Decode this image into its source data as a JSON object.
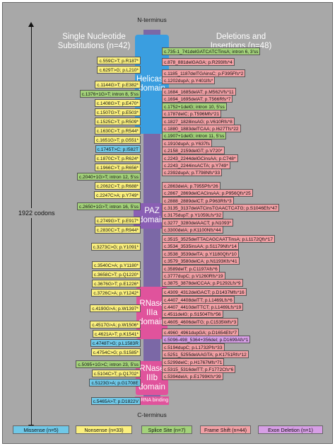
{
  "header": {
    "left_title": [
      "Single Nucleotide",
      "Substitutions (n=42)"
    ],
    "right_title": [
      "Deletions and",
      "Insertions (n=48)"
    ],
    "n_terminus": "N-terminus",
    "c_terminus": "C-terminus",
    "codons": "1922 codons"
  },
  "domains": {
    "helicase": [
      "Helicase",
      "domain"
    ],
    "paz": "PAZ domain",
    "rnase3a": [
      "RNase IIIa",
      "domain"
    ],
    "rnase3b": [
      "RNase IIIb",
      "domain"
    ],
    "dsrna": "dsRNA binding"
  },
  "colors": {
    "Missense": "#6fc8e8",
    "Nonsense": "#fbf07e",
    "Splice": "#a3d27a",
    "Frame": "#f2a0a5",
    "Exon": "#d79ee6",
    "helicase": "#3a9ee0",
    "paz": "#8a5fb4",
    "rnase": "#e0539c",
    "backbone": "#7b68a6"
  },
  "substitutions": [
    {
      "text": "c.559C>T; p.R187*",
      "type": "Nonsense"
    },
    {
      "text": "c.629T>G; p.L210*",
      "type": "Nonsense"
    },
    {
      "text": "c.1144G>T; p.E382*",
      "type": "Nonsense"
    },
    {
      "text": "c.1376+1G>T; intron 8, 5'ss",
      "type": "Splice"
    },
    {
      "text": "c.1408G>T; p.E470*",
      "type": "Nonsense"
    },
    {
      "text": "c.1507G>T; p.E503*",
      "type": "Nonsense"
    },
    {
      "text": "c.1525C>T; p.R509*",
      "type": "Nonsense"
    },
    {
      "text": "c.1630C>T; p.R544*",
      "type": "Nonsense"
    },
    {
      "text": "c.1651G>T; p.G551*",
      "type": "Nonsense"
    },
    {
      "text": "c.1745T>C; p.I582T",
      "type": "Missense"
    },
    {
      "text": "c.1870C>T; p.R624*",
      "type": "Nonsense"
    },
    {
      "text": "c.1966C>T; p.R656*",
      "type": "Nonsense"
    },
    {
      "text": "c.2040+1G>T; intron 12, 5'ss",
      "type": "Splice"
    },
    {
      "text": "c.2062C>T; p.R688*",
      "type": "Nonsense"
    },
    {
      "text": "c.2247C>A; p.Y749*",
      "type": "Nonsense"
    },
    {
      "text": "c.2650+1G>T; intron 16, 5'ss",
      "type": "Splice"
    },
    {
      "text": "c.2749G>T; p.E917*",
      "type": "Nonsense"
    },
    {
      "text": "c.2830C>T; p.R944*",
      "type": "Nonsense"
    },
    {
      "text": "c.3273C>G; p.Y1091*",
      "type": "Nonsense"
    },
    {
      "text": "c.3540C>A; p.Y1180*",
      "type": "Nonsense"
    },
    {
      "text": "c.3658C>T; p.Q1220*",
      "type": "Nonsense"
    },
    {
      "text": "c.3676G>T; p.E1226*",
      "type": "Nonsense"
    },
    {
      "text": "c.3726C>A; p.Y1242*",
      "type": "Nonsense"
    },
    {
      "text": "c.4190G>A; p.W1397*",
      "type": "Nonsense"
    },
    {
      "text": "c.4517G>A; p.W1506*",
      "type": "Nonsense"
    },
    {
      "text": "c.4621A>T; p.K1541*",
      "type": "Nonsense"
    },
    {
      "text": "c.4748T>G; p.L1583R",
      "type": "Missense"
    },
    {
      "text": "c.4754C>G; p.S1585*",
      "type": "Nonsense"
    },
    {
      "text": "c.5095+1G>C; intron 23, 5'ss",
      "type": "Splice"
    },
    {
      "text": "c.5104C>T; p.Q1702*",
      "type": "Nonsense"
    },
    {
      "text": "c.5123G>A; p.G1708E",
      "type": "Missense"
    },
    {
      "text": "c.5465A>T; p.D1822V",
      "type": "Missense"
    }
  ],
  "indels": [
    {
      "text": "c.735-1_741delGATCATCTinsA; intron 6, 3'ss",
      "type": "Splice"
    },
    {
      "text": "c.878_881delGAGA; p.R293Ifs*4",
      "type": "Frame"
    },
    {
      "text": "c.1185_1187delTGAinsC; p.F395Ffs*2",
      "type": "Frame"
    },
    {
      "text": "c.1202dupA; p.Y401Ifs*",
      "type": "Frame"
    },
    {
      "text": "c.1684_1685delAT; p.M562Vfs*11",
      "type": "Frame"
    },
    {
      "text": "c.1694_1695delAT; p.T566Rfs*7",
      "type": "Frame"
    },
    {
      "text": "c.1752+1delG; intron 10, 5'ss",
      "type": "Splice"
    },
    {
      "text": "c.1787delC; p.T596Mfs*21",
      "type": "Frame"
    },
    {
      "text": "c.1827_1828insAG; p.V610Rfs*8",
      "type": "Frame"
    },
    {
      "text": "c.1880_1883delTCAA; p.I627Tfs*22",
      "type": "Frame"
    },
    {
      "text": "c.1907+1delG; intron 11, 5'ss",
      "type": "Splice"
    },
    {
      "text": "c.1910dupA; p.Y637fs",
      "type": "Frame"
    },
    {
      "text": "c.2158_2159delGT; p.V720*",
      "type": "Frame"
    },
    {
      "text": "c.2243_2244delGCinsAA; p.C748*",
      "type": "Frame"
    },
    {
      "text": "c.2243_2244insACTA; p.Y749*",
      "type": "Frame"
    },
    {
      "text": "c.2392dupA; p.T798Nfs*33",
      "type": "Frame"
    },
    {
      "text": "c.2863delA; p.T955Pfs*26",
      "type": "Frame"
    },
    {
      "text": "c.2867_2869delCACinsAA; p.P956Qfs*25",
      "type": "Frame"
    },
    {
      "text": "c.2888_2889delCT; p.P963Rfs*3",
      "type": "Frame"
    },
    {
      "text": "c.3135_3137delATCinsTGAACTCATG; p.S1046Efs*47",
      "type": "Frame"
    },
    {
      "text": "c.3175dupT; p.Y1059Lfs*32",
      "type": "Frame"
    },
    {
      "text": "c.3277_3280delAACT; p.N1093*",
      "type": "Frame"
    },
    {
      "text": "c.3300delA; p.K1100Nfs*44",
      "type": "Frame"
    },
    {
      "text": "c.3515_3525delTTACAGCAATTinsA; p.L1172Qfs*17",
      "type": "Frame"
    },
    {
      "text": "c.3534_3535insAA; p.S1179Nfs*14",
      "type": "Frame"
    },
    {
      "text": "c.3538_3539delTA; p.Y1180Qfs*10",
      "type": "Frame"
    },
    {
      "text": "c.3579_3580delCA; p.N1193Kfs*41",
      "type": "Frame"
    },
    {
      "text": "c.3589delT; p.C1197Afs*6",
      "type": "Frame"
    },
    {
      "text": "c.3777dupC; p.V1260Rfs*19",
      "type": "Frame"
    },
    {
      "text": "c.3875_3878delCCAA; p.P1292Lfs*9",
      "type": "Frame"
    },
    {
      "text": "c.4309_4312delGACT; p.D1437Mfs*16",
      "type": "Frame"
    },
    {
      "text": "c.4407_4408delTT; p.L1469Lfs*6",
      "type": "Frame"
    },
    {
      "text": "c.4407_4410delTTCT; p.L1469Lfs*19",
      "type": "Frame"
    },
    {
      "text": "c.4511delG; p.S1504Tfs*56",
      "type": "Frame"
    },
    {
      "text": "c.4605_4606delTG; p.C1535Wfs*3",
      "type": "Frame"
    },
    {
      "text": "c.4960_4961dupGA; p.D1654Efs*7",
      "type": "Frame"
    },
    {
      "text": "c.5096-498_5364+356del; p.D1699Afs*1",
      "type": "Exon"
    },
    {
      "text": "c.5194dupC; p.L1732Pfs*33",
      "type": "Frame"
    },
    {
      "text": "c.5251_5255delAAGTA; p.K1751Rfs*12",
      "type": "Frame"
    },
    {
      "text": "c.5299delC; p.H1767Mfs*71",
      "type": "Frame"
    },
    {
      "text": "c.5315_5316delTT; p.F1772Cfs*6",
      "type": "Frame"
    },
    {
      "text": "c.5394delA; p.E1799Kfs*39",
      "type": "Frame"
    }
  ],
  "legend": [
    {
      "label": "Missense (n=5)",
      "type": "Missense"
    },
    {
      "label": "Nonsense (n=33)",
      "type": "Nonsense"
    },
    {
      "label": "Splice Site (n=7)",
      "type": "Splice"
    },
    {
      "label": "Frame Shift (n=44)",
      "type": "Frame"
    },
    {
      "label": "Exon Deletion (n=1)",
      "type": "Exon"
    }
  ]
}
